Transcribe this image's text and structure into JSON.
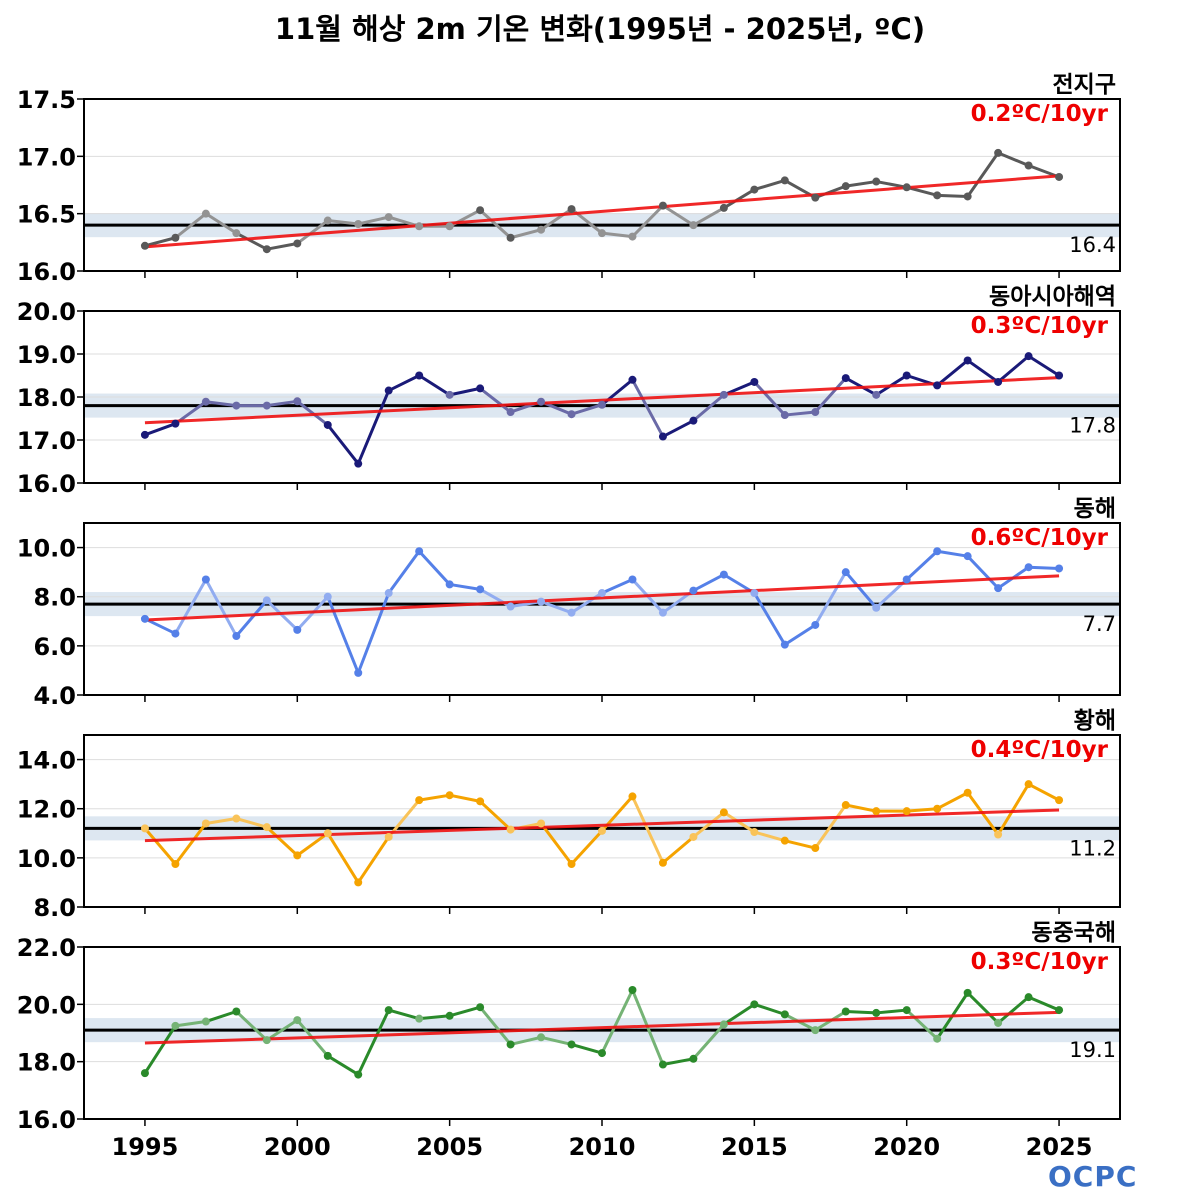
{
  "title": "11월 해상 2m 기온 변화(1995년 - 2025년, ºC)",
  "logo_text": "OCPC",
  "colors": {
    "trend": "#ee1111",
    "mean_line": "#000000",
    "mean_band": "#dde7f1"
  },
  "chart_data": {
    "type": "line",
    "x": [
      1995,
      1996,
      1997,
      1998,
      1999,
      2000,
      2001,
      2002,
      2003,
      2004,
      2005,
      2006,
      2007,
      2008,
      2009,
      2010,
      2011,
      2012,
      2013,
      2014,
      2015,
      2016,
      2017,
      2018,
      2019,
      2020,
      2021,
      2022,
      2023,
      2024,
      2025
    ],
    "xticks": [
      "1995",
      "2000",
      "2005",
      "2010",
      "2015",
      "2020",
      "2025"
    ],
    "xlim": [
      1993,
      2027
    ],
    "panels": [
      {
        "region": "전지구",
        "trend_label": "0.2ºC/10yr",
        "mean_label": "16.4",
        "mean": 16.4,
        "color": "#595959",
        "ylim": [
          16.0,
          17.5
        ],
        "yticks": [
          "16.0",
          "16.5",
          "17.0",
          "17.5"
        ],
        "trend": [
          16.21,
          16.83
        ],
        "values": [
          16.22,
          16.29,
          16.5,
          16.33,
          16.19,
          16.24,
          16.44,
          16.41,
          16.47,
          16.39,
          16.39,
          16.53,
          16.29,
          16.36,
          16.54,
          16.33,
          16.3,
          16.57,
          16.4,
          16.55,
          16.71,
          16.79,
          16.64,
          16.74,
          16.78,
          16.73,
          16.66,
          16.65,
          17.03,
          16.92,
          16.82
        ]
      },
      {
        "region": "동아시아해역",
        "trend_label": "0.3ºC/10yr",
        "mean_label": "17.8",
        "mean": 17.8,
        "color": "#1a1a78",
        "ylim": [
          16.0,
          20.0
        ],
        "yticks": [
          "16.0",
          "17.0",
          "18.0",
          "19.0",
          "20.0"
        ],
        "trend": [
          17.4,
          18.45
        ],
        "values": [
          17.12,
          17.38,
          17.89,
          17.8,
          17.8,
          17.9,
          17.35,
          16.45,
          18.15,
          18.5,
          18.05,
          18.2,
          17.65,
          17.89,
          17.6,
          17.82,
          18.4,
          17.08,
          17.45,
          18.05,
          18.35,
          17.58,
          17.65,
          18.44,
          18.05,
          18.5,
          18.27,
          18.85,
          18.35,
          18.95,
          18.5
        ]
      },
      {
        "region": "동해",
        "trend_label": "0.6ºC/10yr",
        "mean_label": "7.7",
        "mean": 7.7,
        "color": "#5580e8",
        "ylim": [
          4.0,
          11.0
        ],
        "yticks": [
          "4.0",
          "6.0",
          "8.0",
          "10.0"
        ],
        "trend": [
          7.05,
          8.85
        ],
        "values": [
          7.1,
          6.5,
          8.7,
          6.4,
          7.85,
          6.65,
          8.0,
          4.9,
          8.15,
          9.85,
          8.5,
          8.3,
          7.6,
          7.8,
          7.35,
          8.15,
          8.7,
          7.35,
          8.25,
          8.9,
          8.15,
          6.05,
          6.85,
          9.0,
          7.55,
          8.7,
          9.85,
          9.65,
          8.35,
          9.2,
          9.15
        ]
      },
      {
        "region": "황해",
        "trend_label": "0.4ºC/10yr",
        "mean_label": "11.2",
        "mean": 11.2,
        "color": "#f5a300",
        "ylim": [
          8.0,
          15.0
        ],
        "yticks": [
          "8.0",
          "10.0",
          "12.0",
          "14.0"
        ],
        "trend": [
          10.7,
          11.95
        ],
        "values": [
          11.2,
          9.75,
          11.4,
          11.6,
          11.25,
          10.1,
          11.0,
          9.0,
          10.85,
          12.35,
          12.55,
          12.3,
          11.15,
          11.4,
          9.75,
          11.1,
          12.5,
          9.8,
          10.85,
          11.85,
          11.05,
          10.7,
          10.4,
          12.15,
          11.9,
          11.9,
          12.0,
          12.65,
          10.95,
          13.0,
          12.35
        ]
      },
      {
        "region": "동중국해",
        "trend_label": "0.3ºC/10yr",
        "mean_label": "19.1",
        "mean": 19.1,
        "color": "#2a8a2a",
        "ylim": [
          16.0,
          22.0
        ],
        "yticks": [
          "16.0",
          "18.0",
          "20.0",
          "22.0"
        ],
        "trend": [
          18.65,
          19.72
        ],
        "values": [
          17.6,
          19.25,
          19.4,
          19.75,
          18.75,
          19.45,
          18.2,
          17.55,
          19.8,
          19.5,
          19.6,
          19.9,
          18.6,
          18.85,
          18.6,
          18.3,
          20.5,
          17.9,
          18.1,
          19.3,
          20.0,
          19.65,
          19.1,
          19.75,
          19.7,
          19.8,
          18.8,
          20.4,
          19.35,
          20.25,
          19.8
        ]
      }
    ]
  }
}
